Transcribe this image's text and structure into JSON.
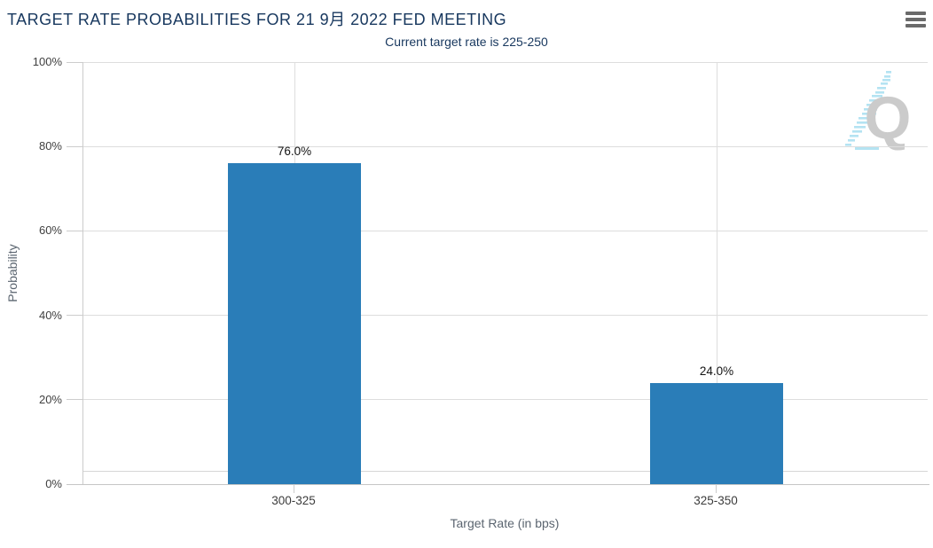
{
  "chart_data": {
    "type": "bar",
    "title": "TARGET RATE PROBABILITIES FOR 21 9月 2022 FED MEETING",
    "subtitle": "Current target rate is 225-250",
    "categories": [
      "300-325",
      "325-350"
    ],
    "values": [
      76.0,
      24.0
    ],
    "value_labels": [
      "76.0%",
      "24.0%"
    ],
    "xlabel": "Target Rate (in bps)",
    "ylabel": "Probability",
    "ylim": [
      0,
      100
    ],
    "yticks": [
      "0%",
      "20%",
      "40%",
      "60%",
      "80%",
      "100%"
    ],
    "grid": true,
    "legend_position": "none",
    "bar_color": "#2a7db8"
  },
  "icons": {
    "menu": "hamburger-menu-icon",
    "watermark": "quandl-logo-icon"
  },
  "watermark": {
    "letter": "Q"
  },
  "colors": {
    "title_navy": "#17375e",
    "bar_blue": "#2a7db8",
    "gridline": "#dddddd",
    "axis_line": "#cccccc",
    "axis_title": "#5b6570",
    "tick_label": "#404040"
  }
}
